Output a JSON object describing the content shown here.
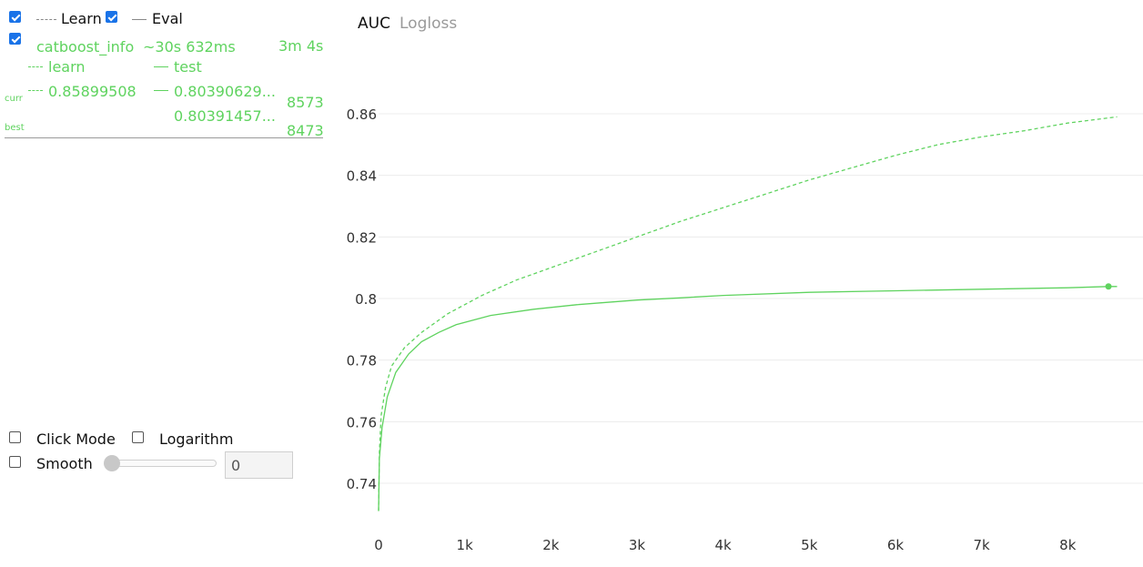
{
  "legend": {
    "learn_label": "Learn",
    "eval_label": "Eval",
    "learn_checked": true,
    "eval_checked": true
  },
  "run": {
    "checked": true,
    "name": "catboost_info",
    "remaining": "~30s 632ms",
    "elapsed": "3m 4s",
    "learn_col": "learn",
    "test_col": "test",
    "curr_label": "curr",
    "best_label": "best",
    "curr_learn": "0.85899508",
    "curr_test": "0.80390629...",
    "curr_iter": "8573",
    "best_test": "0.80391457...",
    "best_iter": "8473",
    "color": "#5fd35f"
  },
  "controls": {
    "click_mode_label": "Click Mode",
    "logarithm_label": "Logarithm",
    "smooth_label": "Smooth",
    "smooth_value": "0"
  },
  "tabs": [
    {
      "label": "AUC",
      "active": true
    },
    {
      "label": "Logloss",
      "active": false
    }
  ],
  "chart_data": {
    "type": "line",
    "x_ticks": [
      "0",
      "1k",
      "2k",
      "3k",
      "4k",
      "5k",
      "6k",
      "7k",
      "8k"
    ],
    "y_ticks": [
      "0.74",
      "0.76",
      "0.78",
      "0.8",
      "0.82",
      "0.84",
      "0.86"
    ],
    "xlim": [
      0,
      8600
    ],
    "ylim": [
      0.731,
      0.868
    ],
    "grid": true,
    "series": [
      {
        "name": "learn",
        "style": "dashed",
        "color": "#5fd35f",
        "points": [
          [
            0,
            0.731
          ],
          [
            10,
            0.75
          ],
          [
            30,
            0.762
          ],
          [
            80,
            0.771
          ],
          [
            150,
            0.778
          ],
          [
            300,
            0.784
          ],
          [
            500,
            0.789
          ],
          [
            800,
            0.795
          ],
          [
            1200,
            0.801
          ],
          [
            1600,
            0.806
          ],
          [
            2000,
            0.81
          ],
          [
            2500,
            0.815
          ],
          [
            3000,
            0.82
          ],
          [
            3500,
            0.825
          ],
          [
            4000,
            0.8295
          ],
          [
            4500,
            0.834
          ],
          [
            5000,
            0.8385
          ],
          [
            5500,
            0.8425
          ],
          [
            6000,
            0.8465
          ],
          [
            6500,
            0.85
          ],
          [
            7000,
            0.8525
          ],
          [
            7500,
            0.8545
          ],
          [
            8000,
            0.857
          ],
          [
            8573,
            0.85899508
          ]
        ]
      },
      {
        "name": "test",
        "style": "solid",
        "color": "#5fd35f",
        "points": [
          [
            0,
            0.731
          ],
          [
            10,
            0.748
          ],
          [
            40,
            0.758
          ],
          [
            100,
            0.768
          ],
          [
            200,
            0.776
          ],
          [
            350,
            0.782
          ],
          [
            500,
            0.786
          ],
          [
            700,
            0.789
          ],
          [
            900,
            0.7915
          ],
          [
            1300,
            0.7945
          ],
          [
            1800,
            0.7965
          ],
          [
            2300,
            0.798
          ],
          [
            3000,
            0.7995
          ],
          [
            3500,
            0.8002
          ],
          [
            4000,
            0.801
          ],
          [
            5000,
            0.802
          ],
          [
            6000,
            0.8025
          ],
          [
            7000,
            0.803
          ],
          [
            8000,
            0.8035
          ],
          [
            8473,
            0.80391457
          ],
          [
            8573,
            0.80390629
          ]
        ]
      }
    ],
    "best_point": {
      "x": 8473,
      "y": 0.80391457
    }
  }
}
